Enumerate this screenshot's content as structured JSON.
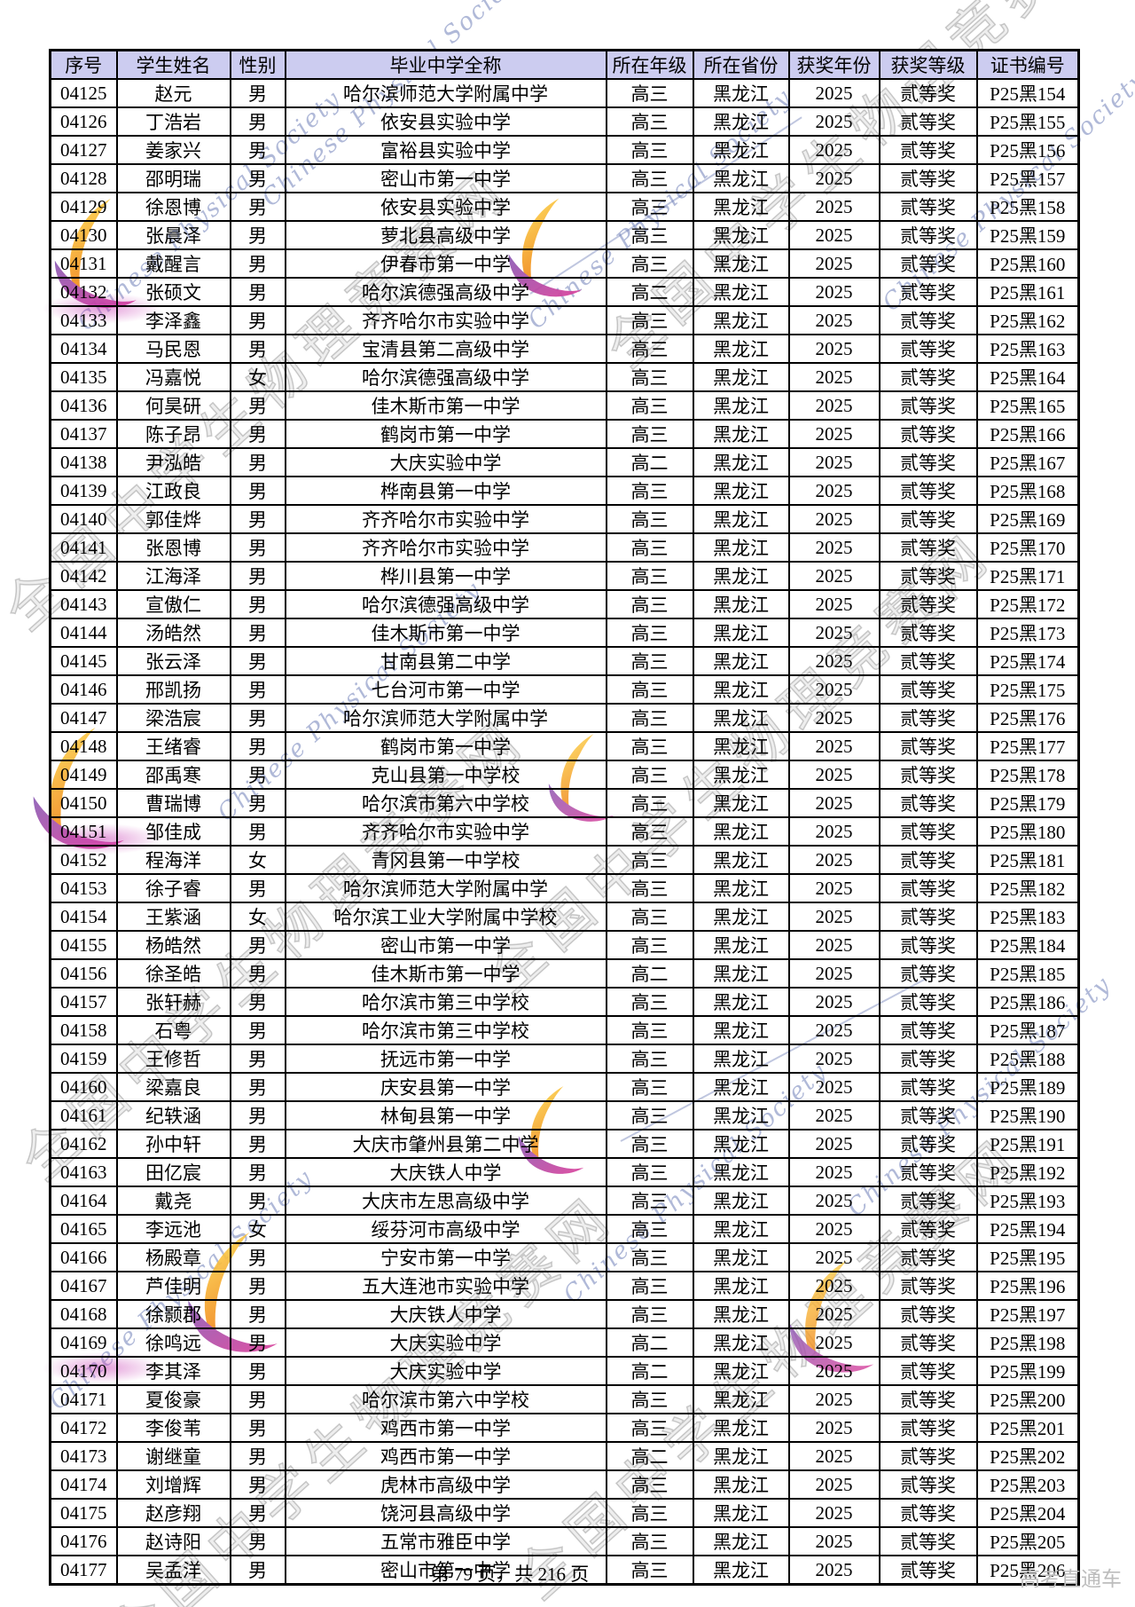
{
  "document": {
    "footer": {
      "page_info": "第 79 页，共 216 页",
      "brand": "高考直通车"
    }
  },
  "watermarks": {
    "site_text": "全国中学生物理竞赛网",
    "society_text": "Chinese Physical Society"
  },
  "colors": {
    "header_bg": "#ccccf0",
    "border": "#000000",
    "watermark_gray": "#999999",
    "script_blue": "#7080b8",
    "ribbon_orange": "#ef7d12",
    "ribbon_yellow": "#ffdf55",
    "ribbon_purple": "#b06ac9",
    "ribbon_magenta": "#d8409b",
    "highlight_magenta": "#c83cb4",
    "brand_gray": "#bdbdbd"
  },
  "table": {
    "columns": [
      "序号",
      "学生姓名",
      "性别",
      "毕业中学全称",
      "所在年级",
      "所在省份",
      "获奖年份",
      "获奖等级",
      "证书编号"
    ],
    "col_keys": [
      "serial",
      "name",
      "gender",
      "school",
      "grade",
      "province",
      "year",
      "award",
      "certificate"
    ],
    "rows": [
      [
        "04125",
        "赵元",
        "男",
        "哈尔滨师范大学附属中学",
        "高三",
        "黑龙江",
        "2025",
        "贰等奖",
        "P25黑154"
      ],
      [
        "04126",
        "丁浩岩",
        "男",
        "依安县实验中学",
        "高三",
        "黑龙江",
        "2025",
        "贰等奖",
        "P25黑155"
      ],
      [
        "04127",
        "姜家兴",
        "男",
        "富裕县实验中学",
        "高三",
        "黑龙江",
        "2025",
        "贰等奖",
        "P25黑156"
      ],
      [
        "04128",
        "邵明瑞",
        "男",
        "密山市第一中学",
        "高三",
        "黑龙江",
        "2025",
        "贰等奖",
        "P25黑157"
      ],
      [
        "04129",
        "徐恩博",
        "男",
        "依安县实验中学",
        "高三",
        "黑龙江",
        "2025",
        "贰等奖",
        "P25黑158"
      ],
      [
        "04130",
        "张晨泽",
        "男",
        "萝北县高级中学",
        "高三",
        "黑龙江",
        "2025",
        "贰等奖",
        "P25黑159"
      ],
      [
        "04131",
        "戴醒言",
        "男",
        "伊春市第一中学",
        "高三",
        "黑龙江",
        "2025",
        "贰等奖",
        "P25黑160"
      ],
      [
        "04132",
        "张硕文",
        "男",
        "哈尔滨德强高级中学",
        "高二",
        "黑龙江",
        "2025",
        "贰等奖",
        "P25黑161"
      ],
      [
        "04133",
        "李泽鑫",
        "男",
        "齐齐哈尔市实验中学",
        "高三",
        "黑龙江",
        "2025",
        "贰等奖",
        "P25黑162"
      ],
      [
        "04134",
        "马民恩",
        "男",
        "宝清县第二高级中学",
        "高三",
        "黑龙江",
        "2025",
        "贰等奖",
        "P25黑163"
      ],
      [
        "04135",
        "冯嘉悦",
        "女",
        "哈尔滨德强高级中学",
        "高三",
        "黑龙江",
        "2025",
        "贰等奖",
        "P25黑164"
      ],
      [
        "04136",
        "何昊研",
        "男",
        "佳木斯市第一中学",
        "高三",
        "黑龙江",
        "2025",
        "贰等奖",
        "P25黑165"
      ],
      [
        "04137",
        "陈子昂",
        "男",
        "鹤岗市第一中学",
        "高三",
        "黑龙江",
        "2025",
        "贰等奖",
        "P25黑166"
      ],
      [
        "04138",
        "尹泓皓",
        "男",
        "大庆实验中学",
        "高二",
        "黑龙江",
        "2025",
        "贰等奖",
        "P25黑167"
      ],
      [
        "04139",
        "江政良",
        "男",
        "桦南县第一中学",
        "高三",
        "黑龙江",
        "2025",
        "贰等奖",
        "P25黑168"
      ],
      [
        "04140",
        "郭佳烨",
        "男",
        "齐齐哈尔市实验中学",
        "高三",
        "黑龙江",
        "2025",
        "贰等奖",
        "P25黑169"
      ],
      [
        "04141",
        "张恩博",
        "男",
        "齐齐哈尔市实验中学",
        "高三",
        "黑龙江",
        "2025",
        "贰等奖",
        "P25黑170"
      ],
      [
        "04142",
        "江海泽",
        "男",
        "桦川县第一中学",
        "高三",
        "黑龙江",
        "2025",
        "贰等奖",
        "P25黑171"
      ],
      [
        "04143",
        "宣傲仁",
        "男",
        "哈尔滨德强高级中学",
        "高三",
        "黑龙江",
        "2025",
        "贰等奖",
        "P25黑172"
      ],
      [
        "04144",
        "汤皓然",
        "男",
        "佳木斯市第一中学",
        "高三",
        "黑龙江",
        "2025",
        "贰等奖",
        "P25黑173"
      ],
      [
        "04145",
        "张云泽",
        "男",
        "甘南县第二中学",
        "高三",
        "黑龙江",
        "2025",
        "贰等奖",
        "P25黑174"
      ],
      [
        "04146",
        "邢凯扬",
        "男",
        "七台河市第一中学",
        "高三",
        "黑龙江",
        "2025",
        "贰等奖",
        "P25黑175"
      ],
      [
        "04147",
        "梁浩宸",
        "男",
        "哈尔滨师范大学附属中学",
        "高三",
        "黑龙江",
        "2025",
        "贰等奖",
        "P25黑176"
      ],
      [
        "04148",
        "王绪睿",
        "男",
        "鹤岗市第一中学",
        "高三",
        "黑龙江",
        "2025",
        "贰等奖",
        "P25黑177"
      ],
      [
        "04149",
        "邵禹寒",
        "男",
        "克山县第一中学校",
        "高三",
        "黑龙江",
        "2025",
        "贰等奖",
        "P25黑178"
      ],
      [
        "04150",
        "曹瑞博",
        "男",
        "哈尔滨市第六中学校",
        "高三",
        "黑龙江",
        "2025",
        "贰等奖",
        "P25黑179"
      ],
      [
        "04151",
        "邹佳成",
        "男",
        "齐齐哈尔市实验中学",
        "高三",
        "黑龙江",
        "2025",
        "贰等奖",
        "P25黑180"
      ],
      [
        "04152",
        "程海洋",
        "女",
        "青冈县第一中学校",
        "高三",
        "黑龙江",
        "2025",
        "贰等奖",
        "P25黑181"
      ],
      [
        "04153",
        "徐子睿",
        "男",
        "哈尔滨师范大学附属中学",
        "高三",
        "黑龙江",
        "2025",
        "贰等奖",
        "P25黑182"
      ],
      [
        "04154",
        "王紫涵",
        "女",
        "哈尔滨工业大学附属中学校",
        "高三",
        "黑龙江",
        "2025",
        "贰等奖",
        "P25黑183"
      ],
      [
        "04155",
        "杨皓然",
        "男",
        "密山市第一中学",
        "高三",
        "黑龙江",
        "2025",
        "贰等奖",
        "P25黑184"
      ],
      [
        "04156",
        "徐圣皓",
        "男",
        "佳木斯市第一中学",
        "高二",
        "黑龙江",
        "2025",
        "贰等奖",
        "P25黑185"
      ],
      [
        "04157",
        "张轩赫",
        "男",
        "哈尔滨市第三中学校",
        "高三",
        "黑龙江",
        "2025",
        "贰等奖",
        "P25黑186"
      ],
      [
        "04158",
        "石粤",
        "男",
        "哈尔滨市第三中学校",
        "高三",
        "黑龙江",
        "2025",
        "贰等奖",
        "P25黑187"
      ],
      [
        "04159",
        "王修哲",
        "男",
        "抚远市第一中学",
        "高三",
        "黑龙江",
        "2025",
        "贰等奖",
        "P25黑188"
      ],
      [
        "04160",
        "梁嘉良",
        "男",
        "庆安县第一中学",
        "高三",
        "黑龙江",
        "2025",
        "贰等奖",
        "P25黑189"
      ],
      [
        "04161",
        "纪轶涵",
        "男",
        "林甸县第一中学",
        "高三",
        "黑龙江",
        "2025",
        "贰等奖",
        "P25黑190"
      ],
      [
        "04162",
        "孙中轩",
        "男",
        "大庆市肇州县第二中学",
        "高三",
        "黑龙江",
        "2025",
        "贰等奖",
        "P25黑191"
      ],
      [
        "04163",
        "田亿宸",
        "男",
        "大庆铁人中学",
        "高三",
        "黑龙江",
        "2025",
        "贰等奖",
        "P25黑192"
      ],
      [
        "04164",
        "戴尧",
        "男",
        "大庆市左思高级中学",
        "高三",
        "黑龙江",
        "2025",
        "贰等奖",
        "P25黑193"
      ],
      [
        "04165",
        "李远池",
        "女",
        "绥芬河市高级中学",
        "高三",
        "黑龙江",
        "2025",
        "贰等奖",
        "P25黑194"
      ],
      [
        "04166",
        "杨殿章",
        "男",
        "宁安市第一中学",
        "高三",
        "黑龙江",
        "2025",
        "贰等奖",
        "P25黑195"
      ],
      [
        "04167",
        "芦佳明",
        "男",
        "五大连池市实验中学",
        "高三",
        "黑龙江",
        "2025",
        "贰等奖",
        "P25黑196"
      ],
      [
        "04168",
        "徐颢郡",
        "男",
        "大庆铁人中学",
        "高三",
        "黑龙江",
        "2025",
        "贰等奖",
        "P25黑197"
      ],
      [
        "04169",
        "徐鸣远",
        "男",
        "大庆实验中学",
        "高二",
        "黑龙江",
        "2025",
        "贰等奖",
        "P25黑198"
      ],
      [
        "04170",
        "李其泽",
        "男",
        "大庆实验中学",
        "高二",
        "黑龙江",
        "2025",
        "贰等奖",
        "P25黑199"
      ],
      [
        "04171",
        "夏俊豪",
        "男",
        "哈尔滨市第六中学校",
        "高三",
        "黑龙江",
        "2025",
        "贰等奖",
        "P25黑200"
      ],
      [
        "04172",
        "李俊苇",
        "男",
        "鸡西市第一中学",
        "高三",
        "黑龙江",
        "2025",
        "贰等奖",
        "P25黑201"
      ],
      [
        "04173",
        "谢继童",
        "男",
        "鸡西市第一中学",
        "高二",
        "黑龙江",
        "2025",
        "贰等奖",
        "P25黑202"
      ],
      [
        "04174",
        "刘增辉",
        "男",
        "虎林市高级中学",
        "高三",
        "黑龙江",
        "2025",
        "贰等奖",
        "P25黑203"
      ],
      [
        "04175",
        "赵彦翔",
        "男",
        "饶河县高级中学",
        "高三",
        "黑龙江",
        "2025",
        "贰等奖",
        "P25黑204"
      ],
      [
        "04176",
        "赵诗阳",
        "男",
        "五常市雅臣中学",
        "高三",
        "黑龙江",
        "2025",
        "贰等奖",
        "P25黑205"
      ],
      [
        "04177",
        "吴孟洋",
        "男",
        "密山市第一中学",
        "高三",
        "黑龙江",
        "2025",
        "贰等奖",
        "P25黑206"
      ]
    ]
  }
}
